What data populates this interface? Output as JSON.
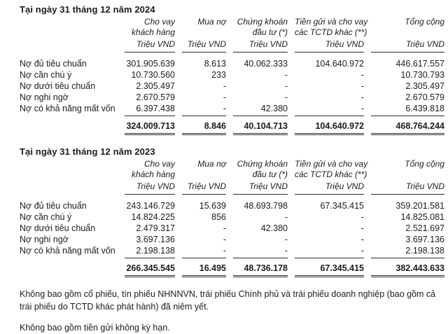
{
  "page": {
    "background": "#ffffff",
    "text_color": "#1b1b1b",
    "rule_color": "#2e2e2e"
  },
  "sections": [
    {
      "title": "Tại ngày 31 tháng 12 năm 2024",
      "columns": [
        {
          "line1": "Cho vay",
          "line2": "khách hàng",
          "unit": "Triệu VND"
        },
        {
          "line1": "Mua nợ",
          "line2": "",
          "unit": "Triệu VND"
        },
        {
          "line1": "Chứng khoán",
          "line2": "đầu tư (*)",
          "unit": "Triệu VND"
        },
        {
          "line1": "Tiền gửi và cho vay",
          "line2": "các TCTD khác (**)",
          "unit": "Triệu VND"
        },
        {
          "line1": "Tổng cộng",
          "line2": "",
          "unit": "Triệu VND"
        }
      ],
      "rows": [
        {
          "label": "Nợ đủ tiêu chuẩn",
          "values": [
            "301.905.639",
            "8.613",
            "40.062.333",
            "104.640.972",
            "446.617.557"
          ]
        },
        {
          "label": "Nợ cần chú ý",
          "values": [
            "10.730.560",
            "233",
            "-",
            "-",
            "10.730.793"
          ]
        },
        {
          "label": "Nợ dưới tiêu chuẩn",
          "values": [
            "2.305.497",
            "-",
            "-",
            "-",
            "2.305.497"
          ]
        },
        {
          "label": "Nợ nghi ngờ",
          "values": [
            "2.670.579",
            "-",
            "-",
            "-",
            "2.670.579"
          ]
        },
        {
          "label": "Nợ có khả năng mất vốn",
          "values": [
            "6.397.438",
            "-",
            "42.380",
            "-",
            "6.439.818"
          ]
        }
      ],
      "total": {
        "values": [
          "324.009.713",
          "8.846",
          "40.104.713",
          "104.640.972",
          "468.764.244"
        ]
      }
    },
    {
      "title": "Tại ngày 31 tháng 12 năm 2023",
      "columns": [
        {
          "line1": "Cho vay",
          "line2": "khách hàng",
          "unit": "Triệu VND"
        },
        {
          "line1": "Mua nợ",
          "line2": "",
          "unit": "Triệu VND"
        },
        {
          "line1": "Chứng khoán",
          "line2": "đầu tư (*)",
          "unit": "Triệu VND"
        },
        {
          "line1": "Tiền gửi và cho vay",
          "line2": "các TCTD khác (**)",
          "unit": "Triệu VND"
        },
        {
          "line1": "Tổng cộng",
          "line2": "",
          "unit": "Triệu VND"
        }
      ],
      "rows": [
        {
          "label": "Nợ đủ tiêu chuẩn",
          "values": [
            "243.146.729",
            "15.639",
            "48.693.798",
            "67.345.415",
            "359.201.581"
          ]
        },
        {
          "label": "Nợ cần chú ý",
          "values": [
            "14.824.225",
            "856",
            "-",
            "-",
            "14.825.081"
          ]
        },
        {
          "label": "Nợ dưới tiêu chuẩn",
          "values": [
            "2.479.317",
            "-",
            "42.380",
            "-",
            "2.521.697"
          ]
        },
        {
          "label": "Nợ nghi ngờ",
          "values": [
            "3.697.136",
            "-",
            "-",
            "-",
            "3.697.136"
          ]
        },
        {
          "label": "Nợ có khả năng mất vốn",
          "values": [
            "2.198.138",
            "-",
            "-",
            "-",
            "2.198.138"
          ]
        }
      ],
      "total": {
        "values": [
          "266.345.545",
          "16.495",
          "48.736.178",
          "67.345.415",
          "382.443.633"
        ]
      }
    }
  ],
  "footnotes": [
    "Không bao gồm cổ phiếu, tín phiếu NHNNVN, trái phiếu Chính phủ và trái phiếu doanh nghiệp (bao gồm cả trái phiếu do TCTD khác phát hành) đã niêm yết.",
    "Không bao gồm tiền gửi không kỳ hạn."
  ]
}
